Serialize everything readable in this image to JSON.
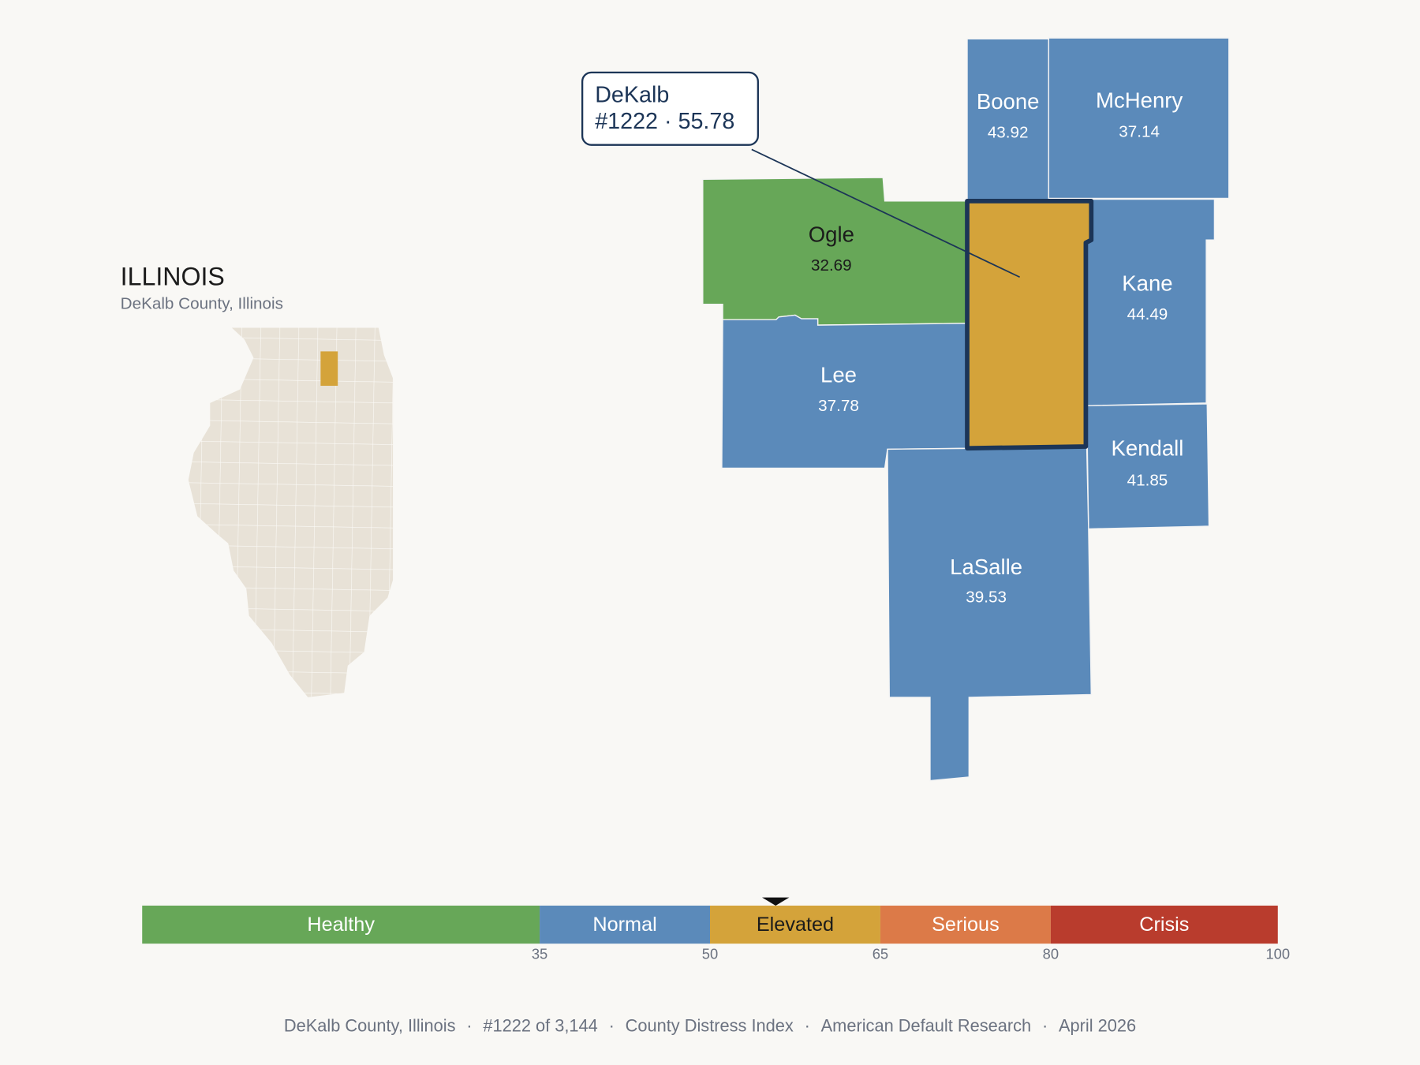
{
  "inset": {
    "title": "ILLINOIS",
    "subtitle": "DeKalb County, Illinois"
  },
  "separator": "·",
  "callout": {
    "name": "DeKalb",
    "rank": "#1222",
    "score": 55.78
  },
  "counties": [
    {
      "name": "Boone",
      "score": 43.92
    },
    {
      "name": "McHenry",
      "score": 37.14
    },
    {
      "name": "Ogle",
      "score": 32.69
    },
    {
      "name": "Lee",
      "score": 37.78
    },
    {
      "name": "Kane",
      "score": 44.49
    },
    {
      "name": "Kendall",
      "score": 41.85
    },
    {
      "name": "LaSalle",
      "score": 39.53
    }
  ],
  "scale": {
    "range": [
      0,
      100
    ],
    "ticks": [
      35,
      50,
      65,
      80,
      100
    ],
    "bands": [
      {
        "label": "Healthy",
        "color": "#67a758"
      },
      {
        "label": "Normal",
        "color": "#5b8aba"
      },
      {
        "label": "Elevated",
        "color": "#d4a33a"
      },
      {
        "label": "Serious",
        "color": "#dc7a48"
      },
      {
        "label": "Crisis",
        "color": "#b93c2d"
      }
    ]
  },
  "footer": [
    "DeKalb County, Illinois",
    "#1222 of 3,144",
    "County Distress Index",
    "American Default Research",
    "April 2026"
  ]
}
